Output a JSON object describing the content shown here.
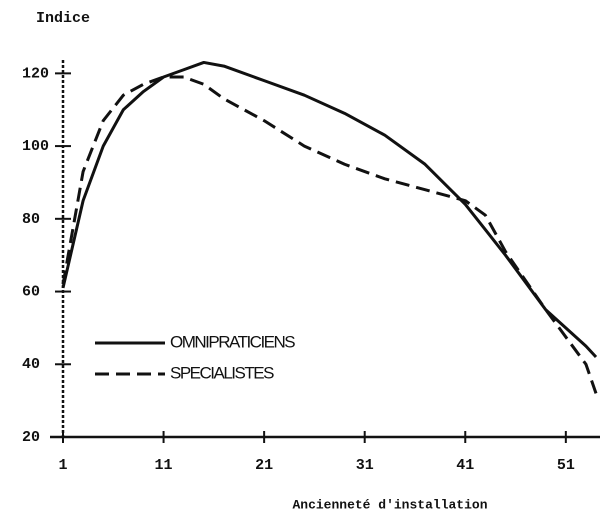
{
  "chart_data": {
    "type": "line",
    "y_label": "Indice",
    "x_label": "Ancienneté d'installation",
    "x": [
      1,
      3,
      5,
      7,
      9,
      11,
      13,
      15,
      17,
      21,
      25,
      29,
      33,
      37,
      41,
      43,
      45,
      49,
      53,
      54
    ],
    "series": [
      {
        "name": "OMNIPRATICIENS",
        "color": "#111111",
        "dash": false,
        "values": [
          61,
          85,
          100,
          110,
          115,
          119,
          121,
          123,
          122,
          118,
          114,
          109,
          103,
          95,
          84,
          77,
          70,
          55,
          45,
          42
        ]
      },
      {
        "name": "SPECIALISTES",
        "color": "#111111",
        "dash": true,
        "values": [
          62,
          93,
          107,
          114,
          117,
          119,
          119,
          117,
          113,
          107,
          100,
          95,
          91,
          88,
          85,
          81,
          71,
          55,
          40,
          32
        ]
      }
    ],
    "xlim": [
      1,
      54
    ],
    "ylim": [
      20,
      130
    ],
    "xticks": [
      1,
      11,
      21,
      31,
      41,
      51
    ],
    "yticks": [
      20,
      40,
      60,
      80,
      100,
      120
    ]
  }
}
